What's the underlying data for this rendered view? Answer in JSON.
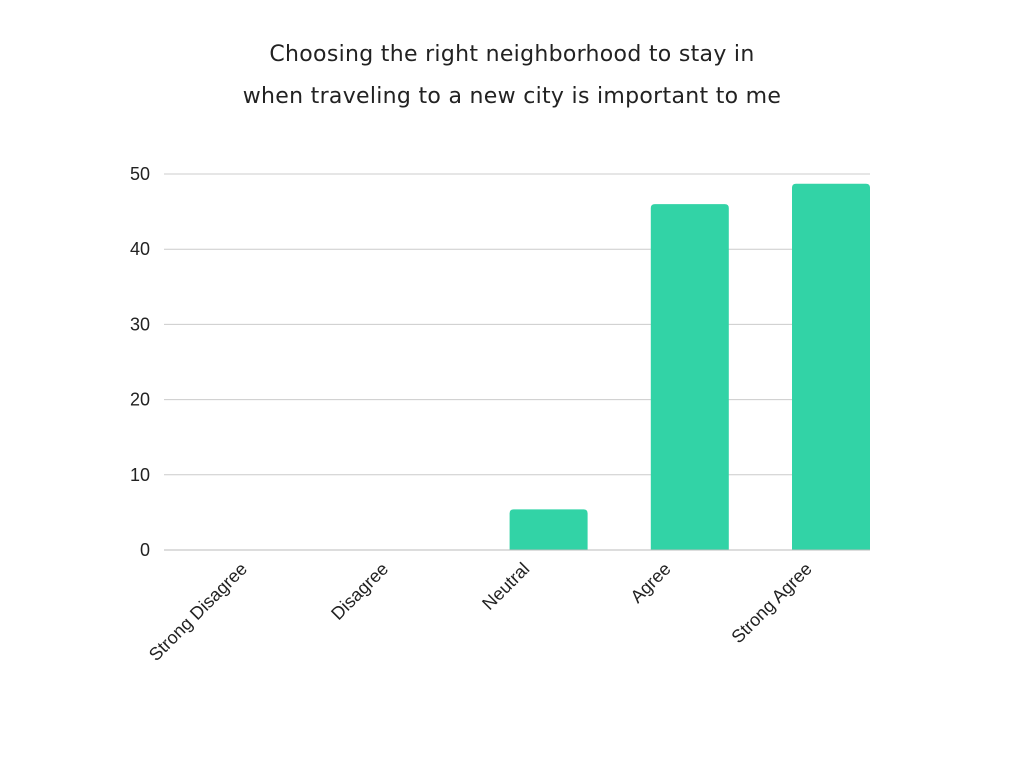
{
  "chart_data": {
    "type": "bar",
    "title_lines": [
      "Choosing the right neighborhood to stay in",
      "when traveling to a new city is important to me"
    ],
    "categories": [
      "Strong Disagree",
      "Disagree",
      "Neutral",
      "Agree",
      "Strong Agree"
    ],
    "values": [
      0,
      0,
      5.4,
      46,
      48.7
    ],
    "ylim": [
      0,
      50
    ],
    "yticks": [
      0,
      10,
      20,
      30,
      40,
      50
    ],
    "grid": true,
    "legend": "none",
    "colors": {
      "bar": "#32d3a6",
      "grid": "#cccccc",
      "axis": "#bbbbbb"
    }
  }
}
